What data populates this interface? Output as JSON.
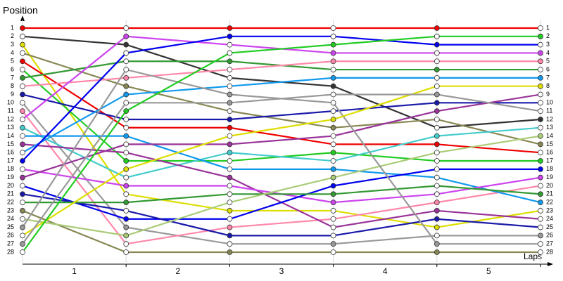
{
  "chart_data": {
    "type": "lap",
    "ylabel": "Position",
    "xlabel": "Laps",
    "lap_labels": [
      1,
      2,
      3,
      4,
      5
    ],
    "ylim": [
      1,
      28
    ],
    "y_inverted": true,
    "yticks": [
      1,
      2,
      3,
      4,
      5,
      6,
      7,
      8,
      9,
      10,
      11,
      12,
      13,
      14,
      15,
      16,
      17,
      18,
      19,
      20,
      21,
      22,
      23,
      24,
      25,
      26,
      27,
      28
    ],
    "grid": true,
    "series": [
      {
        "color": "#ee0000",
        "values": [
          1,
          1,
          1,
          1,
          1,
          1
        ]
      },
      {
        "color": "#333333",
        "values": [
          2,
          3,
          7,
          8,
          13,
          12
        ]
      },
      {
        "color": "#dddd00",
        "values": [
          3,
          21,
          23,
          23,
          25,
          23
        ]
      },
      {
        "color": "#888855",
        "values": [
          4,
          8,
          11,
          13,
          12,
          15
        ]
      },
      {
        "color": "#ee0000",
        "values": [
          5,
          13,
          13,
          15,
          15,
          16
        ]
      },
      {
        "color": "#22cc22",
        "values": [
          6,
          17,
          17,
          16,
          17,
          17
        ]
      },
      {
        "color": "#339933",
        "values": [
          7,
          5,
          5,
          6,
          6,
          6
        ]
      },
      {
        "color": "#ff88aa",
        "values": [
          8,
          7,
          6,
          5,
          5,
          5
        ]
      },
      {
        "color": "#1a1aaa",
        "values": [
          9,
          12,
          12,
          11,
          10,
          10
        ]
      },
      {
        "color": "#999999",
        "values": [
          10,
          25,
          27,
          27,
          26,
          26
        ]
      },
      {
        "color": "#ff88aa",
        "values": [
          11,
          27,
          25,
          24,
          22,
          20
        ]
      },
      {
        "color": "#cc44ee",
        "values": [
          12,
          2,
          3,
          4,
          4,
          4
        ]
      },
      {
        "color": "#44cccc",
        "values": [
          13,
          19,
          16,
          17,
          14,
          13
        ]
      },
      {
        "color": "#1199ee",
        "values": [
          14,
          14,
          18,
          18,
          19,
          22
        ]
      },
      {
        "color": "#993399",
        "values": [
          15,
          16,
          19,
          25,
          23,
          24
        ]
      },
      {
        "color": "#1199ee",
        "values": [
          16,
          9,
          8,
          7,
          7,
          7
        ]
      },
      {
        "color": "#0000ee",
        "values": [
          17,
          4,
          2,
          2,
          3,
          3
        ]
      },
      {
        "color": "#cc44ee",
        "values": [
          18,
          20,
          20,
          22,
          21,
          19
        ]
      },
      {
        "color": "#993399",
        "values": [
          19,
          15,
          15,
          14,
          11,
          9
        ]
      },
      {
        "color": "#0000ee",
        "values": [
          20,
          24,
          24,
          20,
          18,
          18
        ]
      },
      {
        "color": "#1a1aaa",
        "values": [
          21,
          23,
          26,
          26,
          24,
          25
        ]
      },
      {
        "color": "#339933",
        "values": [
          22,
          22,
          21,
          21,
          20,
          21
        ]
      },
      {
        "color": "#888855",
        "values": [
          23,
          28,
          28,
          28,
          28,
          28
        ]
      },
      {
        "color": "#aacc77",
        "values": [
          24,
          26,
          22,
          19,
          16,
          14
        ]
      },
      {
        "color": "#999999",
        "values": [
          25,
          6,
          9,
          10,
          27,
          27
        ]
      },
      {
        "color": "#dddd00",
        "values": [
          26,
          18,
          14,
          12,
          8,
          8
        ]
      },
      {
        "color": "#999999",
        "values": [
          27,
          10,
          10,
          9,
          9,
          11
        ]
      },
      {
        "color": "#22cc22",
        "values": [
          28,
          11,
          4,
          3,
          2,
          2
        ]
      }
    ]
  }
}
